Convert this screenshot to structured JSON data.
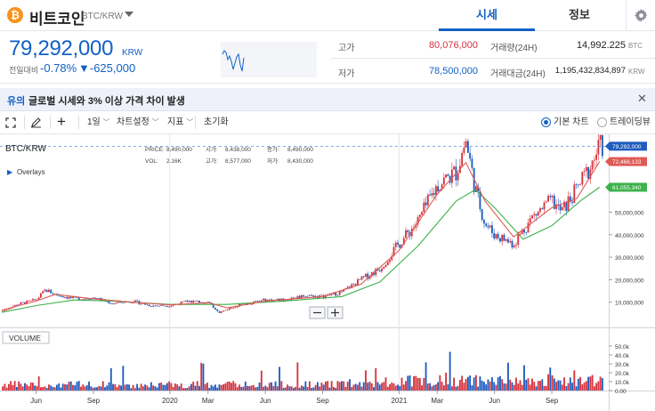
{
  "header": {
    "coin_icon_glyph": "₿",
    "coin_name": "비트코인",
    "pair": "BTC/KRW",
    "tabs": [
      {
        "label": "시세",
        "active": true
      },
      {
        "label": "정보",
        "active": false
      }
    ],
    "brand_color": "#1261c4",
    "coin_color": "#f7931a"
  },
  "price": {
    "current": "79,292,000",
    "unit": "KRW",
    "change_label": "전일대비",
    "change_rate": "-0.78%",
    "change_arrow": "▼",
    "change_amount": "-625,000",
    "stats_left": [
      {
        "label": "고가",
        "value": "80,076,000",
        "color": "#d6333d"
      },
      {
        "label": "저가",
        "value": "78,500,000",
        "color": "#1261c4"
      }
    ],
    "stats_right": [
      {
        "label": "거래량(24H)",
        "value": "14,992.225",
        "unit": "BTC"
      },
      {
        "label": "거래대금(24H)",
        "value": "1,195,432,834,897",
        "unit": "KRW"
      }
    ]
  },
  "notice": {
    "tag": "유의",
    "text": "글로벌 시세와 3% 이상 가격 차이 발생"
  },
  "toolbar": {
    "interval": "1일",
    "chart_settings": "차트설정",
    "indicators": "지표",
    "reset": "초기화",
    "chart_modes": [
      {
        "label": "기본 차트",
        "selected": true
      },
      {
        "label": "트레이딩뷰",
        "selected": false
      }
    ]
  },
  "chart_data": {
    "type": "candlestick",
    "symbol": "BTC/KRW",
    "overlays_label": "Overlays",
    "volume_label": "VOLUME",
    "ohlc_legend": [
      {
        "label": "PRICE:",
        "value": "8,490,000"
      },
      {
        "label": "시가:",
        "value": "8,438,000"
      },
      {
        "label": "종가:",
        "value": "8,490,000"
      },
      {
        "label": "VOL:",
        "value": "2.16K"
      },
      {
        "label": "고가:",
        "value": "8,577,000"
      },
      {
        "label": "저가:",
        "value": "8,430,000"
      }
    ],
    "y_ticks": [
      10000000,
      20000000,
      30000000,
      40000000,
      50000000
    ],
    "y_tick_labels": [
      "10,000,000",
      "20,000,000",
      "30,000,000",
      "40,000,000",
      "50,000,000"
    ],
    "ylim": [
      0,
      83000000
    ],
    "volume_ticks": [
      "50.0k",
      "40.0k",
      "30.0k",
      "20.0k",
      "10.0k",
      "0.00"
    ],
    "volume_ylim": [
      0,
      55000
    ],
    "x_ticks": [
      {
        "label": "Jun",
        "month": 5
      },
      {
        "label": "Sep",
        "month": 8
      },
      {
        "label": "2020",
        "month": 12
      },
      {
        "label": "Mar",
        "month": 14
      },
      {
        "label": "Jun",
        "month": 17
      },
      {
        "label": "Sep",
        "month": 20
      },
      {
        "label": "2021",
        "month": 24
      },
      {
        "label": "Mar",
        "month": 26
      },
      {
        "label": "Jun",
        "month": 29
      },
      {
        "label": "Sep",
        "month": 32
      }
    ],
    "x_range_months": [
      3.2,
      34.7
    ],
    "price_series": [
      {
        "m": 3.2,
        "v": 6000000
      },
      {
        "m": 4.0,
        "v": 9000000
      },
      {
        "m": 5.0,
        "v": 11000000
      },
      {
        "m": 5.5,
        "v": 15500000
      },
      {
        "m": 6.0,
        "v": 13500000
      },
      {
        "m": 7.0,
        "v": 11500000
      },
      {
        "m": 8.0,
        "v": 12000000
      },
      {
        "m": 9.0,
        "v": 9500000
      },
      {
        "m": 10.0,
        "v": 10500000
      },
      {
        "m": 11.0,
        "v": 8500000
      },
      {
        "m": 12.0,
        "v": 8500000
      },
      {
        "m": 13.0,
        "v": 10500000
      },
      {
        "m": 14.0,
        "v": 10000000
      },
      {
        "m": 14.6,
        "v": 5500000
      },
      {
        "m": 15.5,
        "v": 8500000
      },
      {
        "m": 17.0,
        "v": 11000000
      },
      {
        "m": 18.0,
        "v": 11000000
      },
      {
        "m": 19.0,
        "v": 13000000
      },
      {
        "m": 20.0,
        "v": 12500000
      },
      {
        "m": 21.0,
        "v": 14500000
      },
      {
        "m": 22.0,
        "v": 20000000
      },
      {
        "m": 23.0,
        "v": 25000000
      },
      {
        "m": 24.0,
        "v": 36000000
      },
      {
        "m": 25.0,
        "v": 46000000
      },
      {
        "m": 26.0,
        "v": 62000000
      },
      {
        "m": 27.0,
        "v": 68000000
      },
      {
        "m": 27.5,
        "v": 82000000
      },
      {
        "m": 28.0,
        "v": 60000000
      },
      {
        "m": 28.5,
        "v": 45000000
      },
      {
        "m": 29.0,
        "v": 40000000
      },
      {
        "m": 30.0,
        "v": 36000000
      },
      {
        "m": 31.0,
        "v": 48000000
      },
      {
        "m": 32.0,
        "v": 55000000
      },
      {
        "m": 32.5,
        "v": 50000000
      },
      {
        "m": 33.3,
        "v": 60000000
      },
      {
        "m": 34.0,
        "v": 70000000
      },
      {
        "m": 34.5,
        "v": 79292000
      }
    ],
    "ma_short": [
      {
        "m": 3.2,
        "v": 6500000
      },
      {
        "m": 5.0,
        "v": 10500000
      },
      {
        "m": 6.0,
        "v": 13500000
      },
      {
        "m": 8.0,
        "v": 11500000
      },
      {
        "m": 10.0,
        "v": 10000000
      },
      {
        "m": 12.0,
        "v": 8800000
      },
      {
        "m": 14.0,
        "v": 9800000
      },
      {
        "m": 15.0,
        "v": 7500000
      },
      {
        "m": 17.0,
        "v": 10500000
      },
      {
        "m": 20.0,
        "v": 12500000
      },
      {
        "m": 22.0,
        "v": 18000000
      },
      {
        "m": 24.0,
        "v": 33000000
      },
      {
        "m": 26.0,
        "v": 58000000
      },
      {
        "m": 27.5,
        "v": 72000000
      },
      {
        "m": 28.5,
        "v": 55000000
      },
      {
        "m": 30.0,
        "v": 39000000
      },
      {
        "m": 32.0,
        "v": 52000000
      },
      {
        "m": 33.3,
        "v": 56000000
      },
      {
        "m": 34.5,
        "v": 72466133
      }
    ],
    "ma_long": [
      {
        "m": 3.2,
        "v": 5500000
      },
      {
        "m": 5.0,
        "v": 8500000
      },
      {
        "m": 7.0,
        "v": 11000000
      },
      {
        "m": 9.0,
        "v": 10500000
      },
      {
        "m": 12.0,
        "v": 9000000
      },
      {
        "m": 15.0,
        "v": 9000000
      },
      {
        "m": 18.0,
        "v": 10500000
      },
      {
        "m": 21.0,
        "v": 12500000
      },
      {
        "m": 23.0,
        "v": 19000000
      },
      {
        "m": 25.0,
        "v": 35000000
      },
      {
        "m": 27.0,
        "v": 55000000
      },
      {
        "m": 28.0,
        "v": 60000000
      },
      {
        "m": 29.0,
        "v": 52000000
      },
      {
        "m": 30.5,
        "v": 38000000
      },
      {
        "m": 32.0,
        "v": 44000000
      },
      {
        "m": 33.5,
        "v": 55000000
      },
      {
        "m": 34.5,
        "v": 61055340
      }
    ],
    "price_tags": [
      {
        "label": "79,292,000",
        "value": 79292000,
        "color": "#1e5cbf"
      },
      {
        "label": "72,466,133",
        "value": 72466133,
        "color": "#e05a55"
      },
      {
        "label": "61,055,340",
        "value": 61055340,
        "color": "#3bb24a"
      }
    ],
    "current_price": 79292000,
    "up_color": "#d6333d",
    "down_color": "#1e5cbf",
    "ma_short_color": "#e05a55",
    "ma_long_color": "#3bb24a"
  }
}
